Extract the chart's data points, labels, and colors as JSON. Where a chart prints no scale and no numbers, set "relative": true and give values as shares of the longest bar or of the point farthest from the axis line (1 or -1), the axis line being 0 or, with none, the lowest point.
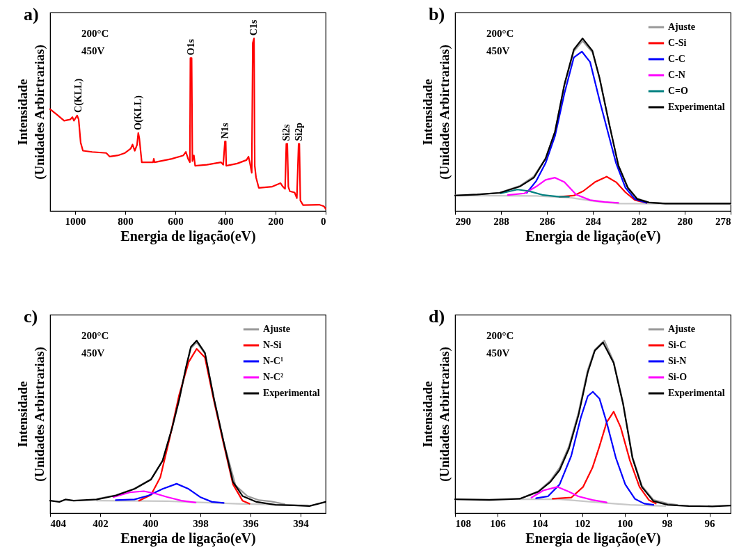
{
  "chart_data": [
    {
      "type": "line",
      "title": "a)",
      "xlabel": "Energia de ligação(eV)",
      "ylabel": "Intensidade\n(Unidades Arbirtrarias)",
      "relative": true,
      "tick_labels": "x",
      "xlim": [
        1100,
        0
      ],
      "xticks": [
        1000,
        800,
        600,
        400,
        200,
        0
      ],
      "annotations": [
        "200°C",
        "450V",
        {
          "text": "C(KLL)",
          "x": 986,
          "y": 0.553
        },
        {
          "text": "O(KLL)",
          "x": 748,
          "y": 0.452
        },
        {
          "text": "O1s",
          "x": 537,
          "y": 0.886
        },
        {
          "text": "N1s",
          "x": 400,
          "y": 0.403
        },
        {
          "text": "C1s",
          "x": 286,
          "y": 1.0
        },
        {
          "text": "Si2s",
          "x": 155,
          "y": 0.389
        },
        {
          "text": "Si2p",
          "x": 106,
          "y": 0.389
        }
      ],
      "series": [
        {
          "color": "#ff0000",
          "x": [
            1100,
            1072,
            1044,
            1020,
            1011,
            1005,
            992,
            986,
            978,
            969,
            932,
            876,
            862,
            829,
            801,
            778,
            771,
            762,
            753,
            748,
            744,
            734,
            689,
            686,
            683,
            614,
            568,
            558,
            549,
            542,
            540,
            535,
            532,
            526,
            521,
            474,
            418,
            409,
            402,
            399,
            397,
            353,
            316,
            308,
            302,
            295,
            291,
            286,
            283,
            278,
            267,
            213,
            180,
            171,
            162,
            157,
            153,
            149,
            143,
            124,
            115,
            108,
            105,
            101,
            90,
            26,
            7,
            0
          ],
          "values": [
            0.59,
            0.557,
            0.523,
            0.53,
            0.544,
            0.523,
            0.553,
            0.53,
            0.396,
            0.349,
            0.342,
            0.336,
            0.315,
            0.322,
            0.336,
            0.362,
            0.385,
            0.349,
            0.383,
            0.452,
            0.423,
            0.282,
            0.282,
            0.302,
            0.282,
            0.302,
            0.322,
            0.342,
            0.302,
            0.282,
            0.886,
            0.886,
            0.289,
            0.322,
            0.262,
            0.268,
            0.282,
            0.268,
            0.403,
            0.403,
            0.262,
            0.275,
            0.295,
            0.315,
            0.275,
            0.221,
            0.973,
            1.0,
            0.262,
            0.195,
            0.134,
            0.141,
            0.161,
            0.141,
            0.128,
            0.389,
            0.389,
            0.141,
            0.114,
            0.107,
            0.074,
            0.389,
            0.389,
            0.06,
            0.034,
            0.036,
            0.027,
            0.013
          ]
        }
      ]
    },
    {
      "type": "line",
      "title": "b)",
      "xlabel": "Energia de ligação(eV)",
      "ylabel": "Intensidade\n(Unidades Arbirtrarias)",
      "relative": true,
      "tick_labels": "x",
      "legend": "top right",
      "xlim": [
        290,
        278
      ],
      "xticks": [
        290,
        288,
        286,
        284,
        282,
        280,
        278
      ],
      "annotations": [
        "200°C",
        "450V"
      ],
      "series": [
        {
          "color": "#c8c8c8",
          "x": [
            290,
            286.47,
            284.94,
            283.91,
            282.89,
            278
          ],
          "values": [
            0.089,
            0.087,
            0.076,
            0.056,
            0.043,
            0.04
          ]
        },
        {
          "name": "Ajuste",
          "color": "#999999",
          "x": [
            290,
            289.03,
            288.06,
            287.19,
            286.57,
            286.06,
            285.65,
            285.24,
            284.83,
            284.45,
            284.02,
            283.71,
            283.3,
            282.89,
            282.48,
            282.07,
            281.56,
            280.84,
            278
          ],
          "values": [
            0.089,
            0.095,
            0.106,
            0.145,
            0.2,
            0.305,
            0.458,
            0.728,
            0.925,
            0.985,
            0.92,
            0.768,
            0.51,
            0.266,
            0.137,
            0.072,
            0.05,
            0.043,
            0.043
          ]
        },
        {
          "name": "C-Si",
          "color": "#ff0000",
          "x": [
            285.45,
            284.83,
            284.42,
            283.91,
            283.4,
            282.99,
            282.58,
            282.17,
            281.66
          ],
          "values": [
            0.082,
            0.089,
            0.115,
            0.167,
            0.199,
            0.167,
            0.108,
            0.063,
            0.047
          ]
        },
        {
          "name": "C-C",
          "color": "#0000ff",
          "x": [
            286.88,
            286.47,
            286.06,
            285.65,
            285.24,
            284.83,
            284.48,
            284.12,
            283.71,
            283.3,
            282.99,
            282.58,
            282.17,
            281.66
          ],
          "values": [
            0.105,
            0.173,
            0.277,
            0.434,
            0.681,
            0.889,
            0.924,
            0.863,
            0.642,
            0.434,
            0.277,
            0.134,
            0.069,
            0.047
          ]
        },
        {
          "name": "C-N",
          "color": "#ff00ff",
          "x": [
            287.7,
            286.98,
            286.47,
            286.06,
            285.65,
            285.24,
            284.73,
            284.12,
            283.5,
            282.89
          ],
          "values": [
            0.092,
            0.102,
            0.141,
            0.18,
            0.193,
            0.167,
            0.095,
            0.063,
            0.052,
            0.047
          ]
        },
        {
          "name": "C=O",
          "color": "#008080",
          "x": [
            288.01,
            287.29,
            286.78,
            286.16,
            285.45,
            285.04
          ],
          "values": [
            0.102,
            0.124,
            0.115,
            0.092,
            0.082,
            0.082
          ]
        },
        {
          "name": "Experimental",
          "color": "#000000",
          "x": [
            290,
            289.03,
            288.06,
            287.19,
            286.57,
            286.06,
            285.65,
            285.24,
            284.83,
            284.45,
            284.02,
            283.71,
            283.3,
            282.89,
            282.48,
            282.07,
            281.56,
            280.84,
            278
          ],
          "values": [
            0.089,
            0.095,
            0.105,
            0.141,
            0.193,
            0.303,
            0.46,
            0.733,
            0.935,
            1.0,
            0.928,
            0.772,
            0.512,
            0.264,
            0.134,
            0.069,
            0.049,
            0.043,
            0.043
          ]
        }
      ]
    },
    {
      "type": "line",
      "title": "c)",
      "xlabel": "Energia de ligação(eV)",
      "ylabel": "Intensidade\n(Unidades Arbirtrarias)",
      "relative": true,
      "tick_labels": "x",
      "legend": "top right",
      "xlim": [
        404,
        393
      ],
      "xticks": [
        404,
        402,
        400,
        398,
        396,
        394
      ],
      "annotations": [
        "200°C",
        "450V"
      ],
      "series": [
        {
          "color": "#c8c8c8",
          "x": [
            402.13,
            399.32,
            396.51,
            393.7
          ],
          "values": [
            0.072,
            0.069,
            0.054,
            0.045
          ]
        },
        {
          "name": "Ajuste",
          "color": "#999999",
          "x": [
            402.13,
            401.38,
            400.63,
            399.97,
            399.51,
            399.13,
            398.85,
            398.57,
            398.38,
            398.15,
            397.82,
            397.45,
            397.07,
            396.6,
            396.13,
            395.66,
            395.2,
            394.64
          ],
          "values": [
            0.082,
            0.104,
            0.142,
            0.197,
            0.305,
            0.49,
            0.655,
            0.845,
            0.955,
            0.99,
            0.925,
            0.655,
            0.41,
            0.161,
            0.099,
            0.075,
            0.068,
            0.052
          ]
        },
        {
          "name": "N-Si",
          "color": "#ff0000",
          "x": [
            400.45,
            399.97,
            399.6,
            399.22,
            398.85,
            398.47,
            398.15,
            397.82,
            397.45,
            397.07,
            396.7,
            396.32,
            396.04
          ],
          "values": [
            0.072,
            0.106,
            0.208,
            0.439,
            0.684,
            0.875,
            0.952,
            0.902,
            0.644,
            0.399,
            0.167,
            0.072,
            0.054
          ]
        },
        {
          "name": "N-C¹",
          "color": "#0000ff",
          "x": [
            401.38,
            400.63,
            400.07,
            399.51,
            398.95,
            398.47,
            398.01,
            397.54,
            397.07
          ],
          "values": [
            0.075,
            0.079,
            0.102,
            0.14,
            0.17,
            0.14,
            0.093,
            0.065,
            0.059
          ]
        },
        {
          "name": "N-C²",
          "color": "#ff00ff",
          "x": [
            401.47,
            400.82,
            400.26,
            399.79,
            399.32,
            398.76,
            398.19
          ],
          "values": [
            0.093,
            0.12,
            0.127,
            0.113,
            0.093,
            0.072,
            0.061
          ]
        },
        {
          "name": "Experimental",
          "color": "#000000",
          "x": [
            404,
            403.63,
            403.39,
            403.06,
            402.13,
            401.38,
            400.63,
            399.97,
            399.51,
            399.13,
            398.85,
            398.57,
            398.38,
            398.15,
            397.82,
            397.45,
            397.07,
            396.7,
            396.32,
            395.76,
            395.01,
            394.26,
            393.65,
            393
          ],
          "values": [
            0.072,
            0.065,
            0.079,
            0.072,
            0.079,
            0.102,
            0.14,
            0.195,
            0.303,
            0.494,
            0.657,
            0.848,
            0.963,
            1.0,
            0.929,
            0.657,
            0.412,
            0.181,
            0.099,
            0.065,
            0.048,
            0.045,
            0.041,
            0.065
          ]
        }
      ]
    },
    {
      "type": "line",
      "title": "d)",
      "xlabel": "Energia de ligação(eV)",
      "ylabel": "Intensidade\n(Unidades Arbirtrarias)",
      "relative": true,
      "tick_labels": "x",
      "legend": "top right",
      "xlim": [
        108,
        95
      ],
      "xticks": [
        108,
        106,
        104,
        102,
        100,
        98,
        96
      ],
      "annotations": [
        "200°C",
        "450V"
      ],
      "series": [
        {
          "color": "#c8c8c8",
          "x": [
            108,
            103.07,
            101.96,
            100.85,
            99.74,
            98.08
          ],
          "values": [
            0.08,
            0.08,
            0.069,
            0.058,
            0.048,
            0.041
          ]
        },
        {
          "name": "Ajuste",
          "color": "#999999",
          "x": [
            104.95,
            104.07,
            103.51,
            103.07,
            102.63,
            102.18,
            101.74,
            101.41,
            100.96,
            100.52,
            100.08,
            99.63,
            99.19,
            98.64,
            97.97,
            97.53
          ],
          "values": [
            0.083,
            0.127,
            0.187,
            0.263,
            0.387,
            0.581,
            0.83,
            0.947,
            1.0,
            0.878,
            0.643,
            0.325,
            0.159,
            0.076,
            0.055,
            0.048
          ]
        },
        {
          "name": "Si-C",
          "color": "#ff0000",
          "x": [
            103.4,
            102.52,
            101.96,
            101.52,
            101.19,
            100.85,
            100.52,
            100.19,
            99.75,
            99.3,
            98.86,
            98.53
          ],
          "values": [
            0.083,
            0.09,
            0.152,
            0.263,
            0.387,
            0.526,
            0.588,
            0.498,
            0.304,
            0.152,
            0.076,
            0.055
          ]
        },
        {
          "name": "Si-N",
          "color": "#0000ff",
          "x": [
            104.18,
            103.62,
            103.07,
            102.52,
            102.07,
            101.74,
            101.5,
            101.19,
            100.85,
            100.41,
            99.97,
            99.52,
            99.08,
            98.64
          ],
          "values": [
            0.086,
            0.097,
            0.166,
            0.332,
            0.553,
            0.678,
            0.703,
            0.664,
            0.526,
            0.318,
            0.166,
            0.083,
            0.055,
            0.048
          ]
        },
        {
          "name": "Si-O",
          "color": "#ff00ff",
          "x": [
            104.4,
            103.84,
            103.18,
            102.63,
            102.18,
            101.52,
            100.85
          ],
          "values": [
            0.09,
            0.131,
            0.152,
            0.124,
            0.097,
            0.076,
            0.062
          ]
        },
        {
          "name": "Experimental",
          "color": "#000000",
          "x": [
            108,
            106.39,
            104.95,
            104.07,
            103.51,
            103.07,
            102.63,
            102.18,
            101.74,
            101.41,
            101.02,
            100.52,
            100.08,
            99.63,
            99.19,
            98.64,
            97.97,
            96.98,
            95.87,
            95
          ],
          "values": [
            0.08,
            0.076,
            0.083,
            0.124,
            0.18,
            0.249,
            0.373,
            0.567,
            0.816,
            0.941,
            0.989,
            0.871,
            0.636,
            0.318,
            0.152,
            0.069,
            0.048,
            0.041,
            0.039,
            0.044
          ]
        }
      ]
    }
  ]
}
